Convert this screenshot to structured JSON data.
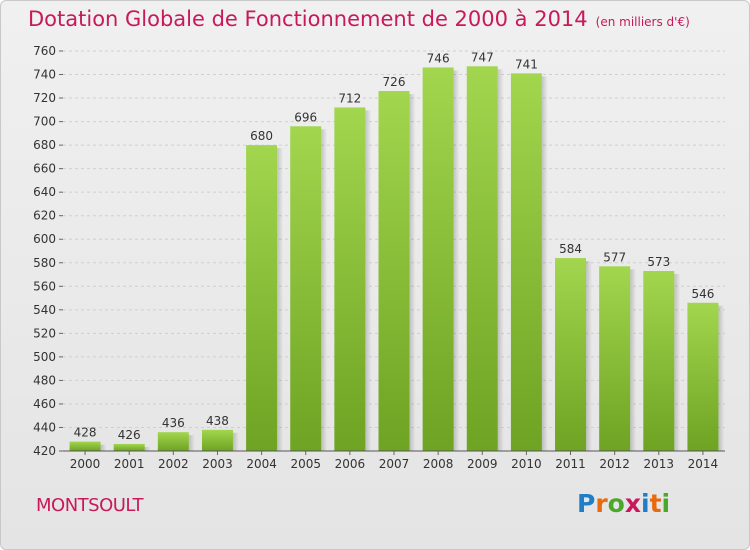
{
  "header": {
    "title": "Dotation Globale de Fonctionnement de 2000 à 2014",
    "subtitle": "(en milliers d'€)"
  },
  "footer": {
    "commune": "MONTSOULT",
    "logo": {
      "letters": [
        "P",
        "r",
        "o",
        "x",
        "i",
        "t",
        "i"
      ],
      "colors": [
        "#1e7ec8",
        "#e86a10",
        "#4aa82a",
        "#c8195a",
        "#1e7ec8",
        "#e86a10",
        "#4aa82a"
      ]
    }
  },
  "chart_data": {
    "type": "bar",
    "categories": [
      "2000",
      "2001",
      "2002",
      "2003",
      "2004",
      "2005",
      "2006",
      "2007",
      "2008",
      "2009",
      "2010",
      "2011",
      "2012",
      "2013",
      "2014"
    ],
    "values": [
      428,
      426,
      436,
      438,
      680,
      696,
      712,
      726,
      746,
      747,
      741,
      584,
      577,
      573,
      546
    ],
    "title": "Dotation Globale de Fonctionnement de 2000 à 2014",
    "subtitle": "(en milliers d'€)",
    "xlabel": "",
    "ylabel": "",
    "ylim": [
      420,
      760
    ],
    "ytick_step": 20,
    "grid": true,
    "bar_color": "#8cc63f"
  }
}
